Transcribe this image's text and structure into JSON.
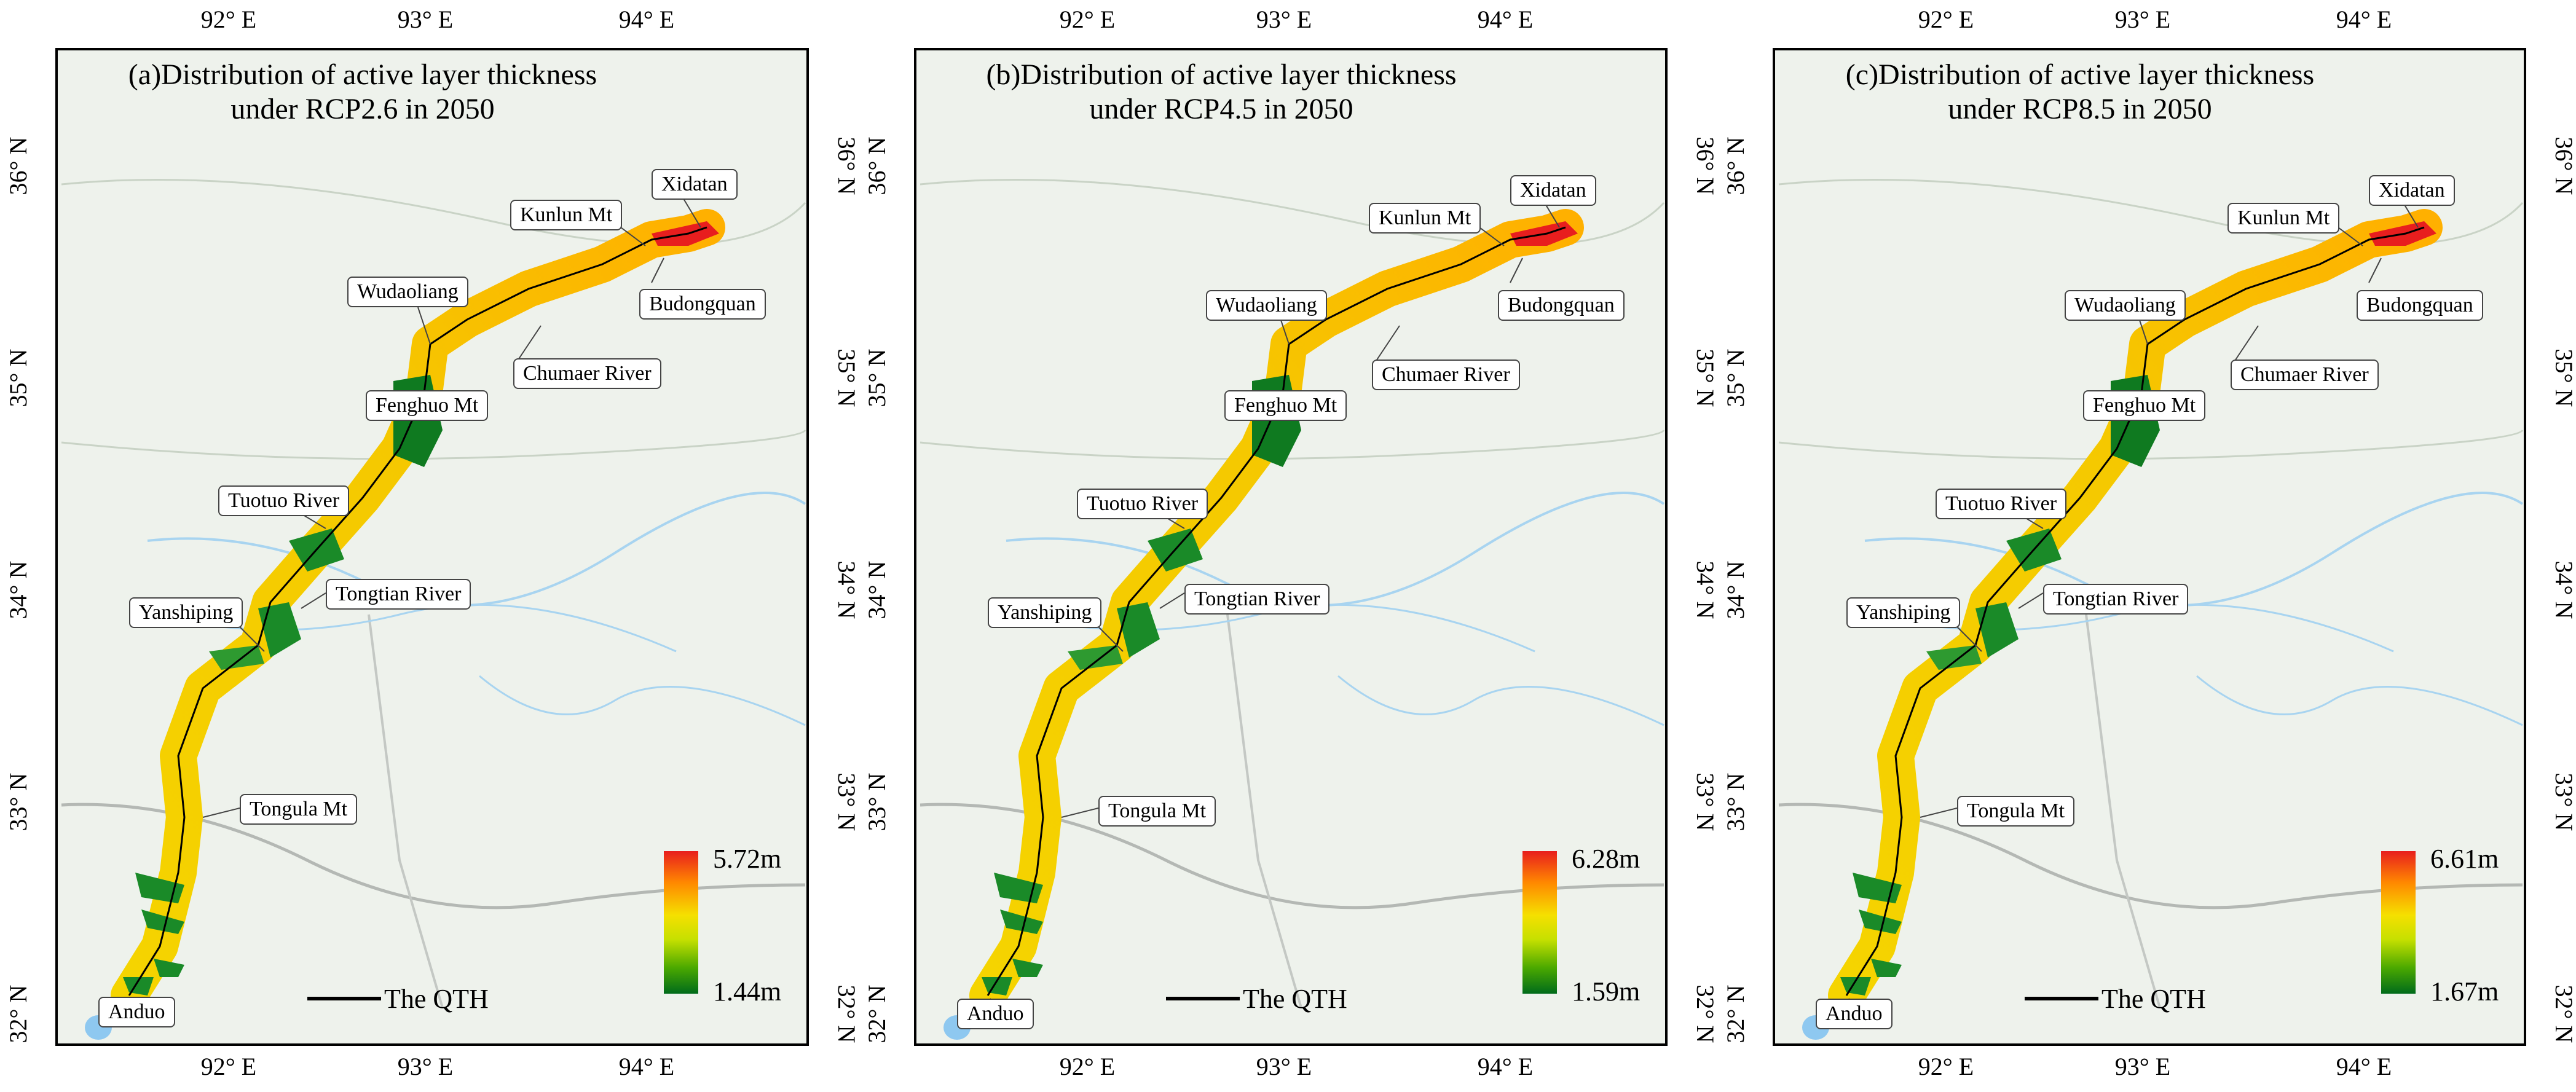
{
  "figure": {
    "panels": [
      {
        "title": "(a)Distribution of active layer thickness under RCP2.6 in 2050",
        "title_line1": "(a)Distribution of active layer thickness",
        "title_line2": "under RCP2.6 in 2050",
        "legend_max": "5.72m",
        "legend_min": "1.44m"
      },
      {
        "title": "(b)Distribution of active layer thickness under RCP4.5 in 2050",
        "title_line1": "(b)Distribution of active layer thickness",
        "title_line2": "under RCP4.5 in 2050",
        "legend_max": "6.28m",
        "legend_min": "1.59m"
      },
      {
        "title": "(c)Distribution of active layer thickness under RCP8.5 in 2050",
        "title_line1": "(c)Distribution of active layer thickness",
        "title_line2": "under RCP8.5 in 2050",
        "legend_max": "6.61m",
        "legend_min": "1.67m"
      }
    ],
    "longitude_ticks": [
      "92° E",
      "93° E",
      "94° E"
    ],
    "latitude_ticks_left": [
      "36° N",
      "35° N",
      "34° N",
      "33° N",
      "32° N"
    ],
    "latitude_ticks_right": [
      "36° N",
      "35° N",
      "34° N",
      "33° N",
      "32° N"
    ],
    "places": {
      "xidatan": "Xidatan",
      "kunlun": "Kunlun Mt",
      "budongquan": "Budongquan",
      "wudaoliang": "Wudaoliang",
      "chumaer": "Chumaer River",
      "fenghuo": "Fenghuo Mt",
      "tuotuo": "Tuotuo River",
      "tongtian": "Tongtian River",
      "yanshiping": "Yanshiping",
      "tongula": "Tongula Mt",
      "anduo": "Anduo"
    },
    "legend_line_label": "The QTH",
    "colors": {
      "high": "#e81e1e",
      "mid_high": "#ff8800",
      "mid": "#f5e000",
      "low_mid": "#c6e000",
      "low": "#006b1a",
      "background": "#eef2ec",
      "river": "#a8d4f0",
      "boundary": "#b4b8b4",
      "lake": "#8ec8f0"
    }
  }
}
